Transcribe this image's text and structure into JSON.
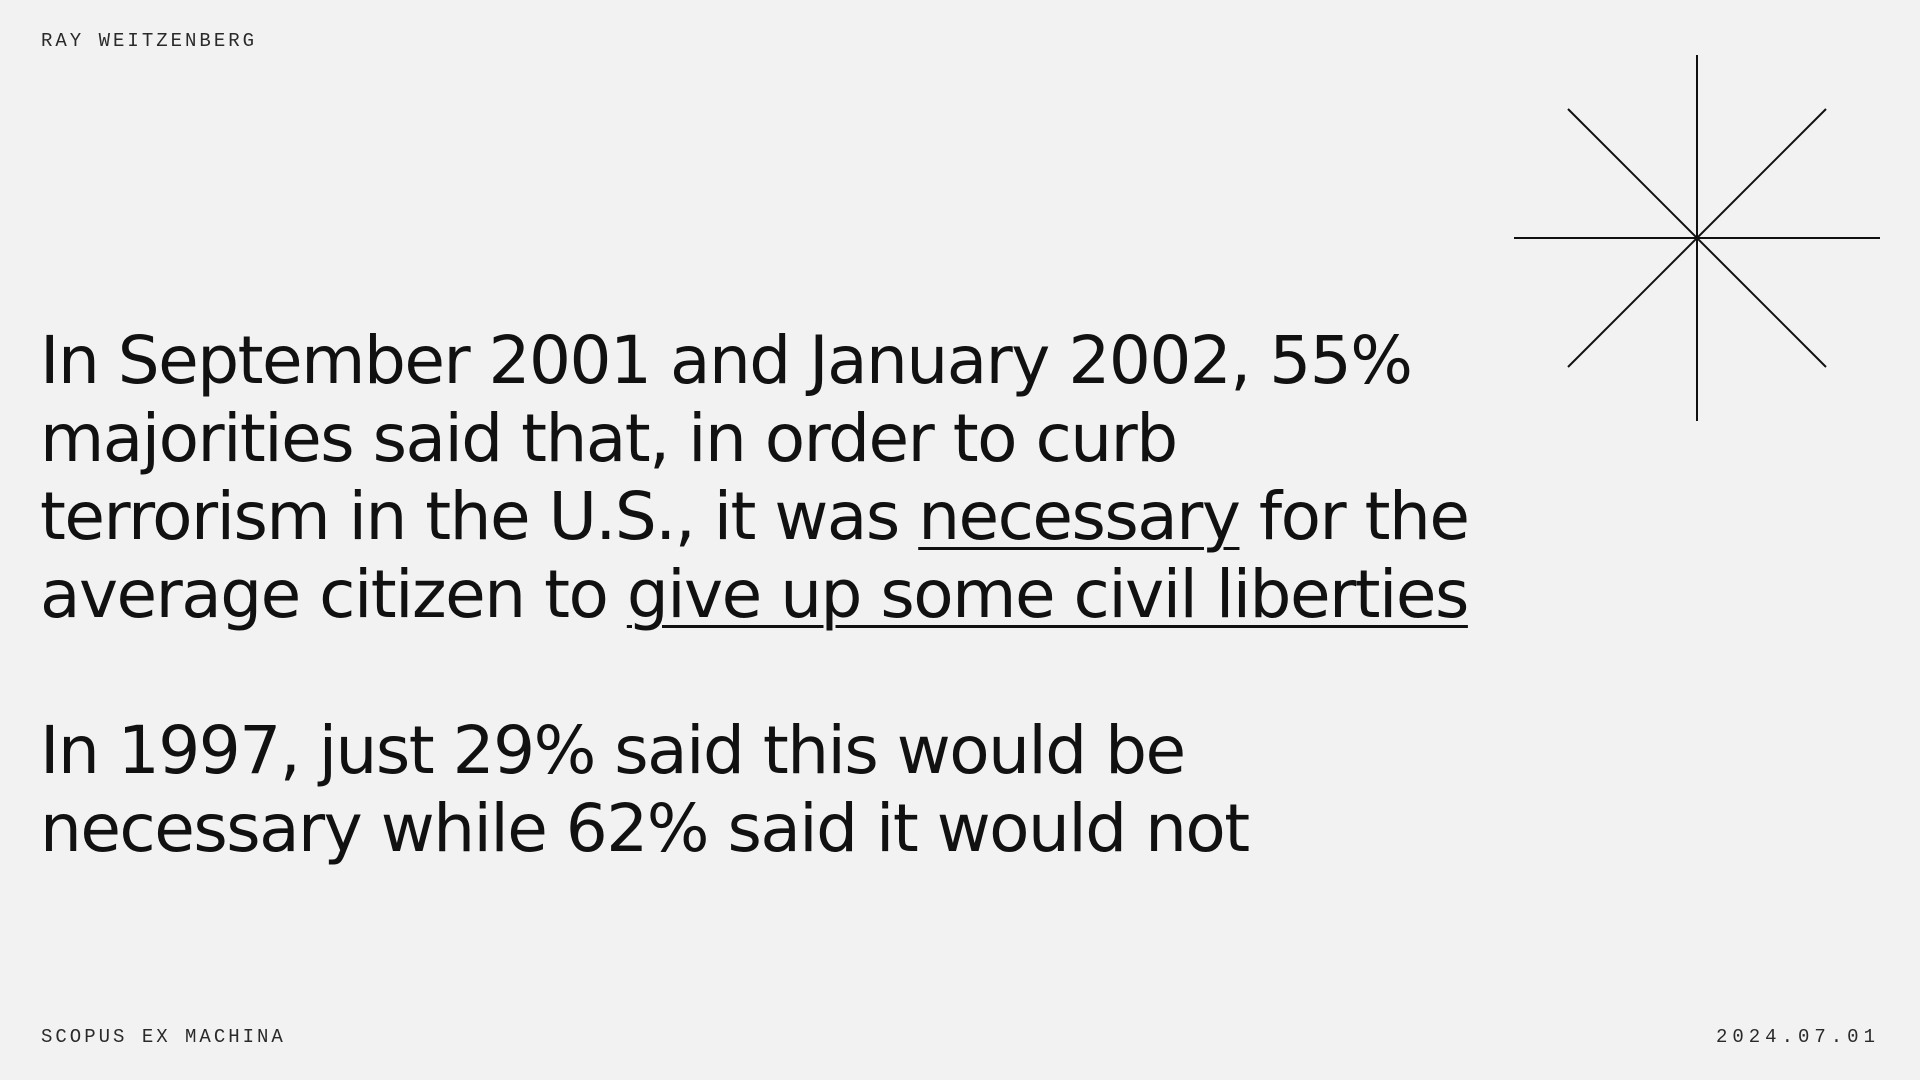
{
  "header": {
    "author": "RAY WEITZENBERG"
  },
  "main": {
    "paragraph1": {
      "part1": "In September 2001 and January 2002, 55% majorities said that, in order to curb terrorism in the U.S., it was ",
      "underline1": "necessary",
      "part2": " for the average citizen to ",
      "underline2": "give up some civil liberties"
    },
    "paragraph2": "In 1997, just 29% said this would be necessary while 62% said it would not"
  },
  "footer": {
    "left": "SCOPUS EX MACHINA",
    "right": "2024.07.01"
  },
  "decoration": {
    "icon": "starburst-icon",
    "stroke_color": "#111111"
  },
  "colors": {
    "background": "#f2f2f2",
    "text": "#111111"
  }
}
